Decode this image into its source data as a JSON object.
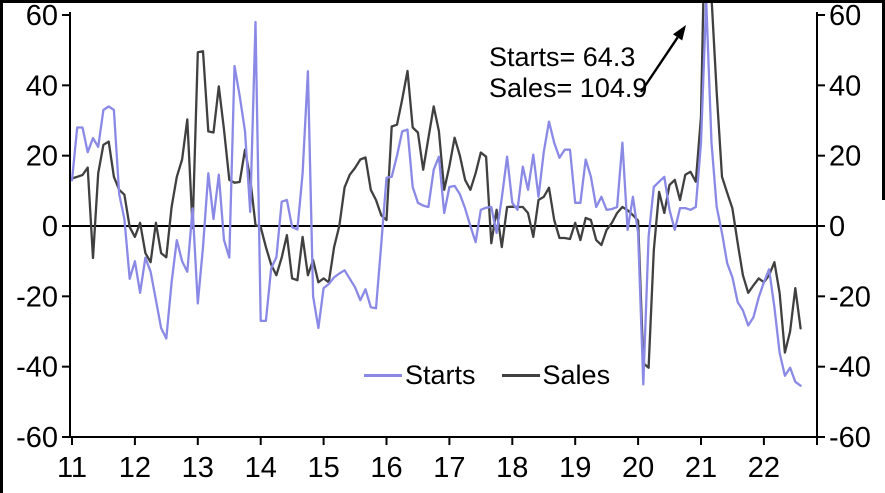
{
  "chart_data": {
    "type": "line",
    "title": "",
    "grid": false,
    "legend_position": "bottom-center",
    "x_axis": {
      "tick_labels": [
        "11",
        "12",
        "13",
        "14",
        "15",
        "16",
        "17",
        "18",
        "19",
        "20",
        "21",
        "22"
      ],
      "points_per_year": 12,
      "start_label": "11"
    },
    "y_axis": {
      "ticks": [
        60,
        40,
        20,
        0,
        -20,
        -40,
        -60
      ],
      "min": -60,
      "max": 60,
      "mirrored_right": true
    },
    "annotation": {
      "line1": "Starts= 64.3",
      "line2": "Sales= 104.9"
    },
    "series": [
      {
        "name": "Starts",
        "color": "#8a8ae6",
        "values": [
          13,
          28,
          28,
          21,
          25,
          22.5,
          33,
          34,
          33,
          9,
          2,
          -15,
          -10,
          -19,
          -9,
          -13,
          -21,
          -29,
          -32,
          -16,
          -4,
          -10,
          -13,
          5,
          -22,
          -6,
          15,
          2,
          14.6,
          -4,
          -9,
          45.5,
          37,
          27,
          4,
          58,
          -27,
          -27,
          -12,
          -8.9,
          6.9,
          7.4,
          -0.3,
          -1,
          15,
          44,
          -20,
          -29,
          -17.7,
          -16.5,
          -14.6,
          -13.5,
          -12.6,
          -15,
          -17.4,
          -21.1,
          -18,
          -23.1,
          -23.4,
          -5,
          13.7,
          14,
          20,
          26.9,
          27.4,
          11.1,
          6.6,
          5.8,
          5.4,
          16,
          19.7,
          3.7,
          11.1,
          11.4,
          9,
          5,
          0,
          -4.6,
          4.6,
          5.2,
          5.4,
          -2,
          8,
          19.7,
          6.6,
          4.6,
          16.9,
          10.3,
          20.3,
          8.3,
          21.1,
          29.7,
          23.7,
          19.4,
          21.7,
          21.7,
          6.6,
          6.6,
          18.9,
          14,
          5.4,
          8.3,
          4.6,
          4.8,
          5.4,
          23.7,
          -1.1,
          8.3,
          -2,
          -45,
          -3,
          11.1,
          12.6,
          14,
          4.6,
          -1.1,
          5.1,
          5.1,
          4.6,
          5.4,
          23.7,
          64.3,
          23.7,
          5.4,
          -2,
          -10.6,
          -14.6,
          -21.7,
          -24,
          -28.3,
          -26,
          -20.3,
          -16,
          -12.3,
          -23.1,
          -36,
          -42.6,
          -40.3,
          -44.3,
          -45.4
        ]
      },
      {
        "name": "Sales",
        "color": "#404040",
        "values": [
          13.5,
          14,
          14.5,
          16.6,
          -9.1,
          15,
          23.1,
          24,
          14,
          10.3,
          8.9,
          -0.3,
          -3.1,
          0.9,
          -7.7,
          -10.3,
          0.9,
          -7.7,
          -8.9,
          5.4,
          14,
          18.9,
          30.3,
          -0.6,
          49.4,
          49.7,
          26.9,
          26.6,
          39.7,
          27.4,
          13.1,
          12.3,
          12.5,
          21.7,
          13.5,
          0.3,
          -0.3,
          -6,
          -11,
          -14,
          -9,
          -2.6,
          -14.9,
          -15.4,
          -3.1,
          -14,
          -9.7,
          -16,
          -14.9,
          -16,
          -6,
          0,
          11,
          14.6,
          16.5,
          18.9,
          19.5,
          10.3,
          7.4,
          3,
          1.7,
          28.3,
          28.8,
          36,
          44.1,
          28,
          26.6,
          16,
          25,
          34,
          27,
          10.3,
          17,
          25.1,
          20,
          13.1,
          10.3,
          15,
          20.9,
          19.7,
          -4.9,
          4.6,
          -6,
          5.4,
          5.5,
          5.4,
          5.4,
          3.7,
          -3.1,
          7.4,
          8.3,
          10.9,
          1.7,
          -3.4,
          -3.4,
          -3.7,
          0.9,
          -4,
          2.3,
          1.7,
          -4,
          -5.4,
          -1.1,
          0.9,
          3.7,
          5.4,
          4.5,
          3.1,
          1.5,
          -39,
          -40.3,
          -6.9,
          9.7,
          3.7,
          11.7,
          13.1,
          7.4,
          14.6,
          15.4,
          12.6,
          31.1,
          104.9,
          65,
          38,
          14,
          9.4,
          5,
          -4.9,
          -14,
          -19,
          -16.9,
          -14.9,
          -16,
          -14,
          -10.3,
          -19,
          -36,
          -30,
          -17.7,
          -29.1
        ]
      }
    ]
  }
}
